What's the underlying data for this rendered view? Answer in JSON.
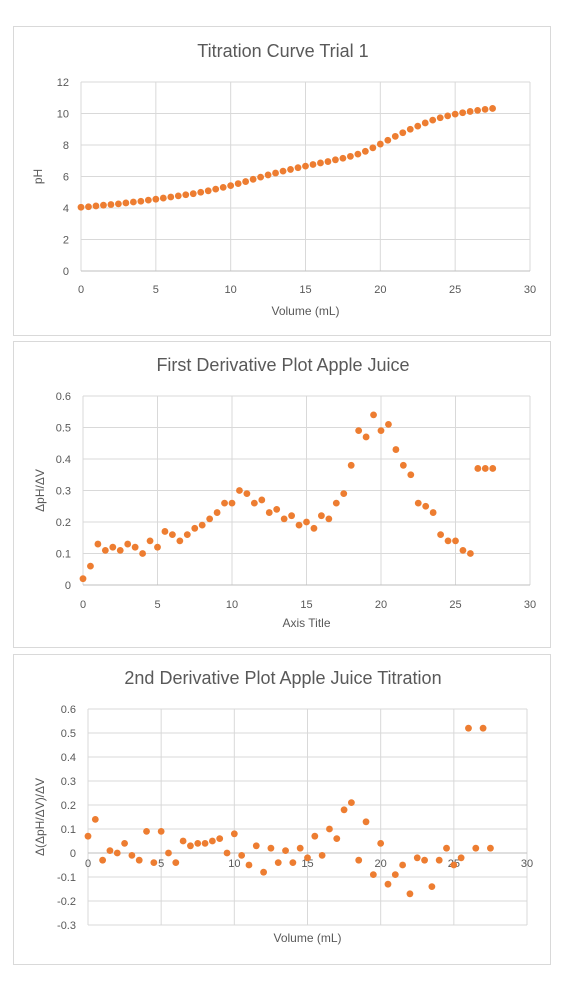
{
  "chart_data": [
    {
      "type": "scatter",
      "title": "Titration Curve Trial 1",
      "xlabel": "Volume (mL)",
      "ylabel": "pH",
      "xlim": [
        0,
        30
      ],
      "ylim": [
        0,
        12
      ],
      "xticks": [
        0,
        5,
        10,
        15,
        20,
        25,
        30
      ],
      "yticks": [
        0,
        2,
        4,
        6,
        8,
        10,
        12
      ],
      "grid": true,
      "marker_color": "#ED7D31",
      "x": [
        0,
        0.5,
        1,
        1.5,
        2,
        2.5,
        3,
        3.5,
        4,
        4.5,
        5,
        5.5,
        6,
        6.5,
        7,
        7.5,
        8,
        8.5,
        9,
        9.5,
        10,
        10.5,
        11,
        11.5,
        12,
        12.5,
        13,
        13.5,
        14,
        14.5,
        15,
        15.5,
        16,
        16.5,
        17,
        17.5,
        18,
        18.5,
        19,
        19.5,
        20,
        20.5,
        21,
        21.5,
        22,
        22.5,
        23,
        23.5,
        24,
        24.5,
        25,
        25.5,
        26,
        26.5,
        27,
        27.5
      ],
      "y": [
        4.05,
        4.08,
        4.13,
        4.18,
        4.22,
        4.26,
        4.32,
        4.38,
        4.43,
        4.5,
        4.56,
        4.63,
        4.7,
        4.77,
        4.84,
        4.91,
        5.0,
        5.09,
        5.2,
        5.31,
        5.42,
        5.55,
        5.68,
        5.82,
        5.96,
        6.1,
        6.22,
        6.34,
        6.45,
        6.56,
        6.66,
        6.76,
        6.86,
        6.95,
        7.06,
        7.16,
        7.28,
        7.42,
        7.6,
        7.82,
        8.06,
        8.3,
        8.55,
        8.78,
        9.0,
        9.2,
        9.4,
        9.58,
        9.73,
        9.85,
        9.96,
        10.05,
        10.13,
        10.2,
        10.26,
        10.32
      ]
    },
    {
      "type": "scatter",
      "title": "First Derivative Plot Apple Juice",
      "xlabel": "Axis Title",
      "ylabel": "ΔpH/ΔV",
      "xlim": [
        0,
        30
      ],
      "ylim": [
        0,
        0.6
      ],
      "xticks": [
        0,
        5,
        10,
        15,
        20,
        25,
        30
      ],
      "yticks": [
        0,
        0.1,
        0.2,
        0.3,
        0.4,
        0.5,
        0.6
      ],
      "grid": true,
      "marker_color": "#ED7D31",
      "x": [
        0,
        0.5,
        1,
        1.5,
        2,
        2.5,
        3,
        3.5,
        4,
        4.5,
        5,
        5.5,
        6,
        6.5,
        7,
        7.5,
        8,
        8.5,
        9,
        9.5,
        10,
        10.5,
        11,
        11.5,
        12,
        12.5,
        13,
        13.5,
        14,
        14.5,
        15,
        15.5,
        16,
        16.5,
        17,
        17.5,
        18,
        18.5,
        19,
        19.5,
        20,
        20.5,
        21,
        21.5,
        22,
        22.5,
        23,
        23.5,
        24,
        24.5,
        25,
        25.5,
        26,
        26.5,
        27,
        27.5
      ],
      "y": [
        0.02,
        0.06,
        0.13,
        0.11,
        0.12,
        0.11,
        0.13,
        0.12,
        0.1,
        0.14,
        0.12,
        0.17,
        0.16,
        0.14,
        0.16,
        0.18,
        0.19,
        0.21,
        0.23,
        0.26,
        0.26,
        0.3,
        0.29,
        0.26,
        0.27,
        0.23,
        0.24,
        0.21,
        0.22,
        0.19,
        0.2,
        0.18,
        0.22,
        0.21,
        0.26,
        0.29,
        0.38,
        0.49,
        0.47,
        0.54,
        0.49,
        0.51,
        0.43,
        0.38,
        0.35,
        0.26,
        0.25,
        0.23,
        0.16,
        0.14,
        0.14,
        0.11,
        0.1,
        0.37,
        0.37,
        0.37
      ]
    },
    {
      "type": "scatter",
      "title": "2nd Derivative Plot Apple Juice Titration",
      "xlabel": "Volume (mL)",
      "ylabel": "Δ(ΔpH/ΔV)/ΔV",
      "xlim": [
        0,
        30
      ],
      "ylim": [
        -0.3,
        0.6
      ],
      "xticks": [
        0,
        5,
        10,
        15,
        20,
        25,
        30
      ],
      "yticks": [
        -0.3,
        -0.2,
        -0.1,
        0,
        0.1,
        0.2,
        0.3,
        0.4,
        0.5,
        0.6
      ],
      "grid": true,
      "marker_color": "#ED7D31",
      "x": [
        0,
        0.5,
        1,
        1.5,
        2,
        2.5,
        3,
        3.5,
        4,
        4.5,
        5,
        5.5,
        6,
        6.5,
        7,
        7.5,
        8,
        8.5,
        9,
        9.5,
        10,
        10.5,
        11,
        11.5,
        12,
        12.5,
        13,
        13.5,
        14,
        14.5,
        15,
        15.5,
        16,
        16.5,
        17,
        17.5,
        18,
        18.5,
        19,
        19.5,
        20,
        20.5,
        21,
        21.5,
        22,
        22.5,
        23,
        23.5,
        24,
        24.5,
        25,
        25.5,
        26,
        26.5,
        27,
        27.5
      ],
      "y": [
        0.07,
        0.14,
        -0.03,
        0.01,
        0.0,
        0.04,
        -0.01,
        -0.03,
        0.09,
        -0.04,
        0.09,
        0.0,
        -0.04,
        0.05,
        0.03,
        0.04,
        0.04,
        0.05,
        0.06,
        0.0,
        0.08,
        -0.01,
        -0.05,
        0.03,
        -0.08,
        0.02,
        -0.04,
        0.01,
        -0.04,
        0.02,
        -0.02,
        0.07,
        -0.01,
        0.1,
        0.06,
        0.18,
        0.21,
        -0.03,
        0.13,
        -0.09,
        0.04,
        -0.13,
        -0.09,
        -0.05,
        -0.17,
        -0.02,
        -0.03,
        -0.14,
        -0.03,
        0.02,
        -0.05,
        -0.02,
        0.52,
        0.02,
        0.52,
        0.02
      ]
    }
  ]
}
